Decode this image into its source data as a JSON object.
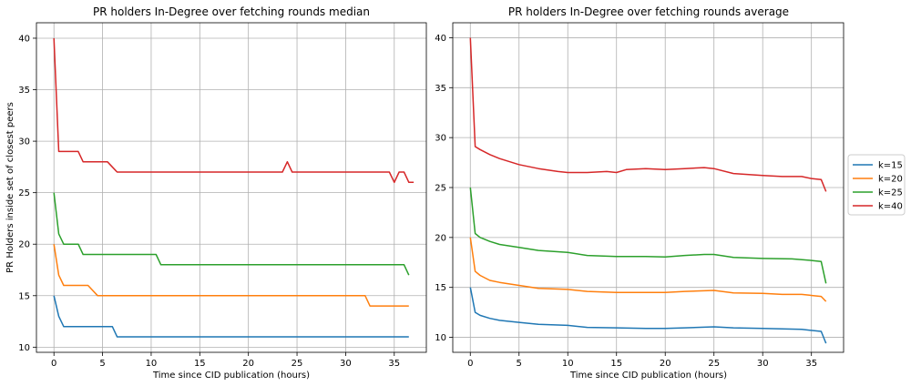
{
  "figure": {
    "ylabel": "PR Holders inside set of closest peers"
  },
  "legend": {
    "placement": "right-center",
    "entries": [
      {
        "label": "k=15",
        "color": "#1f77b4"
      },
      {
        "label": "k=20",
        "color": "#ff7f0e"
      },
      {
        "label": "k=25",
        "color": "#2ca02c"
      },
      {
        "label": "k=40",
        "color": "#d62728"
      }
    ]
  },
  "chart_data": [
    {
      "type": "line",
      "title": "PR holders In-Degree over fetching rounds median",
      "xlabel": "Time since CID publication (hours)",
      "ylabel": "PR Holders inside set of closest peers",
      "xlim": [
        -1.8,
        38.3
      ],
      "ylim": [
        9.5,
        41.5
      ],
      "xticks": [
        0,
        5,
        10,
        15,
        20,
        25,
        30,
        35
      ],
      "yticks": [
        10,
        15,
        20,
        25,
        30,
        35,
        40
      ],
      "grid": true,
      "series": [
        {
          "name": "k=15",
          "color": "#1f77b4",
          "points": [
            [
              0,
              15
            ],
            [
              0.5,
              13
            ],
            [
              1,
              12
            ],
            [
              1.5,
              12
            ],
            [
              2,
              12
            ],
            [
              3,
              12
            ],
            [
              4,
              12
            ],
            [
              5,
              12
            ],
            [
              6,
              12
            ],
            [
              6.5,
              11
            ],
            [
              10,
              11
            ],
            [
              15,
              11
            ],
            [
              20,
              11
            ],
            [
              25,
              11
            ],
            [
              30,
              11
            ],
            [
              35,
              11
            ],
            [
              36.5,
              11
            ]
          ]
        },
        {
          "name": "k=20",
          "color": "#ff7f0e",
          "points": [
            [
              0,
              20
            ],
            [
              0.5,
              17
            ],
            [
              1,
              16
            ],
            [
              2,
              16
            ],
            [
              3,
              16
            ],
            [
              3.5,
              16
            ],
            [
              4.5,
              15
            ],
            [
              10,
              15
            ],
            [
              15,
              15
            ],
            [
              20,
              15
            ],
            [
              25,
              15
            ],
            [
              30,
              15
            ],
            [
              32,
              15
            ],
            [
              32.5,
              14
            ],
            [
              35,
              14
            ],
            [
              36.5,
              14
            ]
          ]
        },
        {
          "name": "k=25",
          "color": "#2ca02c",
          "points": [
            [
              0,
              25
            ],
            [
              0.5,
              21
            ],
            [
              1,
              20
            ],
            [
              2,
              20
            ],
            [
              2.5,
              20
            ],
            [
              3,
              19
            ],
            [
              5,
              19
            ],
            [
              10,
              19
            ],
            [
              10.5,
              19
            ],
            [
              11,
              18
            ],
            [
              15,
              18
            ],
            [
              20,
              18
            ],
            [
              25,
              18
            ],
            [
              30,
              18
            ],
            [
              36,
              18
            ],
            [
              36.5,
              17
            ]
          ]
        },
        {
          "name": "k=40",
          "color": "#d62728",
          "points": [
            [
              0,
              40
            ],
            [
              0.5,
              29
            ],
            [
              1,
              29
            ],
            [
              2,
              29
            ],
            [
              2.5,
              29
            ],
            [
              3,
              28
            ],
            [
              5,
              28
            ],
            [
              5.5,
              28
            ],
            [
              6.5,
              27
            ],
            [
              10,
              27
            ],
            [
              15,
              27
            ],
            [
              20,
              27
            ],
            [
              23.5,
              27
            ],
            [
              24,
              28
            ],
            [
              24.5,
              27
            ],
            [
              30,
              27
            ],
            [
              34.5,
              27
            ],
            [
              35,
              26
            ],
            [
              35.5,
              27
            ],
            [
              36,
              27
            ],
            [
              36.5,
              26
            ],
            [
              37,
              26
            ]
          ]
        }
      ]
    },
    {
      "type": "line",
      "title": "PR holders In-Degree over fetching rounds average",
      "xlabel": "Time since CID publication (hours)",
      "ylabel": "",
      "xlim": [
        -1.8,
        38.3
      ],
      "ylim": [
        8.5,
        41.5
      ],
      "xticks": [
        0,
        5,
        10,
        15,
        20,
        25,
        30,
        35
      ],
      "yticks": [
        10,
        15,
        20,
        25,
        30,
        35,
        40
      ],
      "grid": true,
      "series": [
        {
          "name": "k=15",
          "color": "#1f77b4",
          "points": [
            [
              0,
              15
            ],
            [
              0.5,
              12.5
            ],
            [
              1,
              12.2
            ],
            [
              2,
              11.9
            ],
            [
              3,
              11.7
            ],
            [
              5,
              11.5
            ],
            [
              7,
              11.3
            ],
            [
              10,
              11.2
            ],
            [
              12,
              11.0
            ],
            [
              15,
              10.95
            ],
            [
              18,
              10.9
            ],
            [
              20,
              10.9
            ],
            [
              22,
              10.95
            ],
            [
              25,
              11.05
            ],
            [
              27,
              10.95
            ],
            [
              30,
              10.9
            ],
            [
              32,
              10.85
            ],
            [
              34,
              10.8
            ],
            [
              36,
              10.6
            ],
            [
              36.5,
              9.4
            ]
          ]
        },
        {
          "name": "k=20",
          "color": "#ff7f0e",
          "points": [
            [
              0,
              20
            ],
            [
              0.5,
              16.6
            ],
            [
              1,
              16.2
            ],
            [
              2,
              15.7
            ],
            [
              3,
              15.5
            ],
            [
              5,
              15.2
            ],
            [
              7,
              14.9
            ],
            [
              10,
              14.8
            ],
            [
              12,
              14.6
            ],
            [
              15,
              14.5
            ],
            [
              18,
              14.5
            ],
            [
              20,
              14.5
            ],
            [
              22,
              14.6
            ],
            [
              25,
              14.7
            ],
            [
              27,
              14.45
            ],
            [
              30,
              14.4
            ],
            [
              32,
              14.3
            ],
            [
              34,
              14.3
            ],
            [
              36,
              14.1
            ],
            [
              36.5,
              13.6
            ]
          ]
        },
        {
          "name": "k=25",
          "color": "#2ca02c",
          "points": [
            [
              0,
              25
            ],
            [
              0.5,
              20.4
            ],
            [
              1,
              20.0
            ],
            [
              2,
              19.6
            ],
            [
              3,
              19.3
            ],
            [
              5,
              19.0
            ],
            [
              7,
              18.7
            ],
            [
              10,
              18.5
            ],
            [
              12,
              18.2
            ],
            [
              15,
              18.1
            ],
            [
              18,
              18.1
            ],
            [
              20,
              18.05
            ],
            [
              22,
              18.2
            ],
            [
              24,
              18.3
            ],
            [
              25,
              18.3
            ],
            [
              27,
              18.0
            ],
            [
              30,
              17.9
            ],
            [
              33,
              17.85
            ],
            [
              35,
              17.7
            ],
            [
              36,
              17.6
            ],
            [
              36.5,
              15.4
            ]
          ]
        },
        {
          "name": "k=40",
          "color": "#d62728",
          "points": [
            [
              0,
              40
            ],
            [
              0.5,
              29.1
            ],
            [
              1,
              28.8
            ],
            [
              2,
              28.3
            ],
            [
              3,
              27.9
            ],
            [
              5,
              27.3
            ],
            [
              7,
              26.9
            ],
            [
              9,
              26.6
            ],
            [
              10,
              26.5
            ],
            [
              12,
              26.5
            ],
            [
              14,
              26.6
            ],
            [
              15,
              26.5
            ],
            [
              16,
              26.8
            ],
            [
              18,
              26.9
            ],
            [
              20,
              26.8
            ],
            [
              22,
              26.9
            ],
            [
              24,
              27.0
            ],
            [
              25,
              26.9
            ],
            [
              27,
              26.4
            ],
            [
              30,
              26.2
            ],
            [
              32,
              26.1
            ],
            [
              34,
              26.1
            ],
            [
              35,
              25.9
            ],
            [
              36,
              25.8
            ],
            [
              36.5,
              24.6
            ]
          ]
        }
      ]
    }
  ]
}
